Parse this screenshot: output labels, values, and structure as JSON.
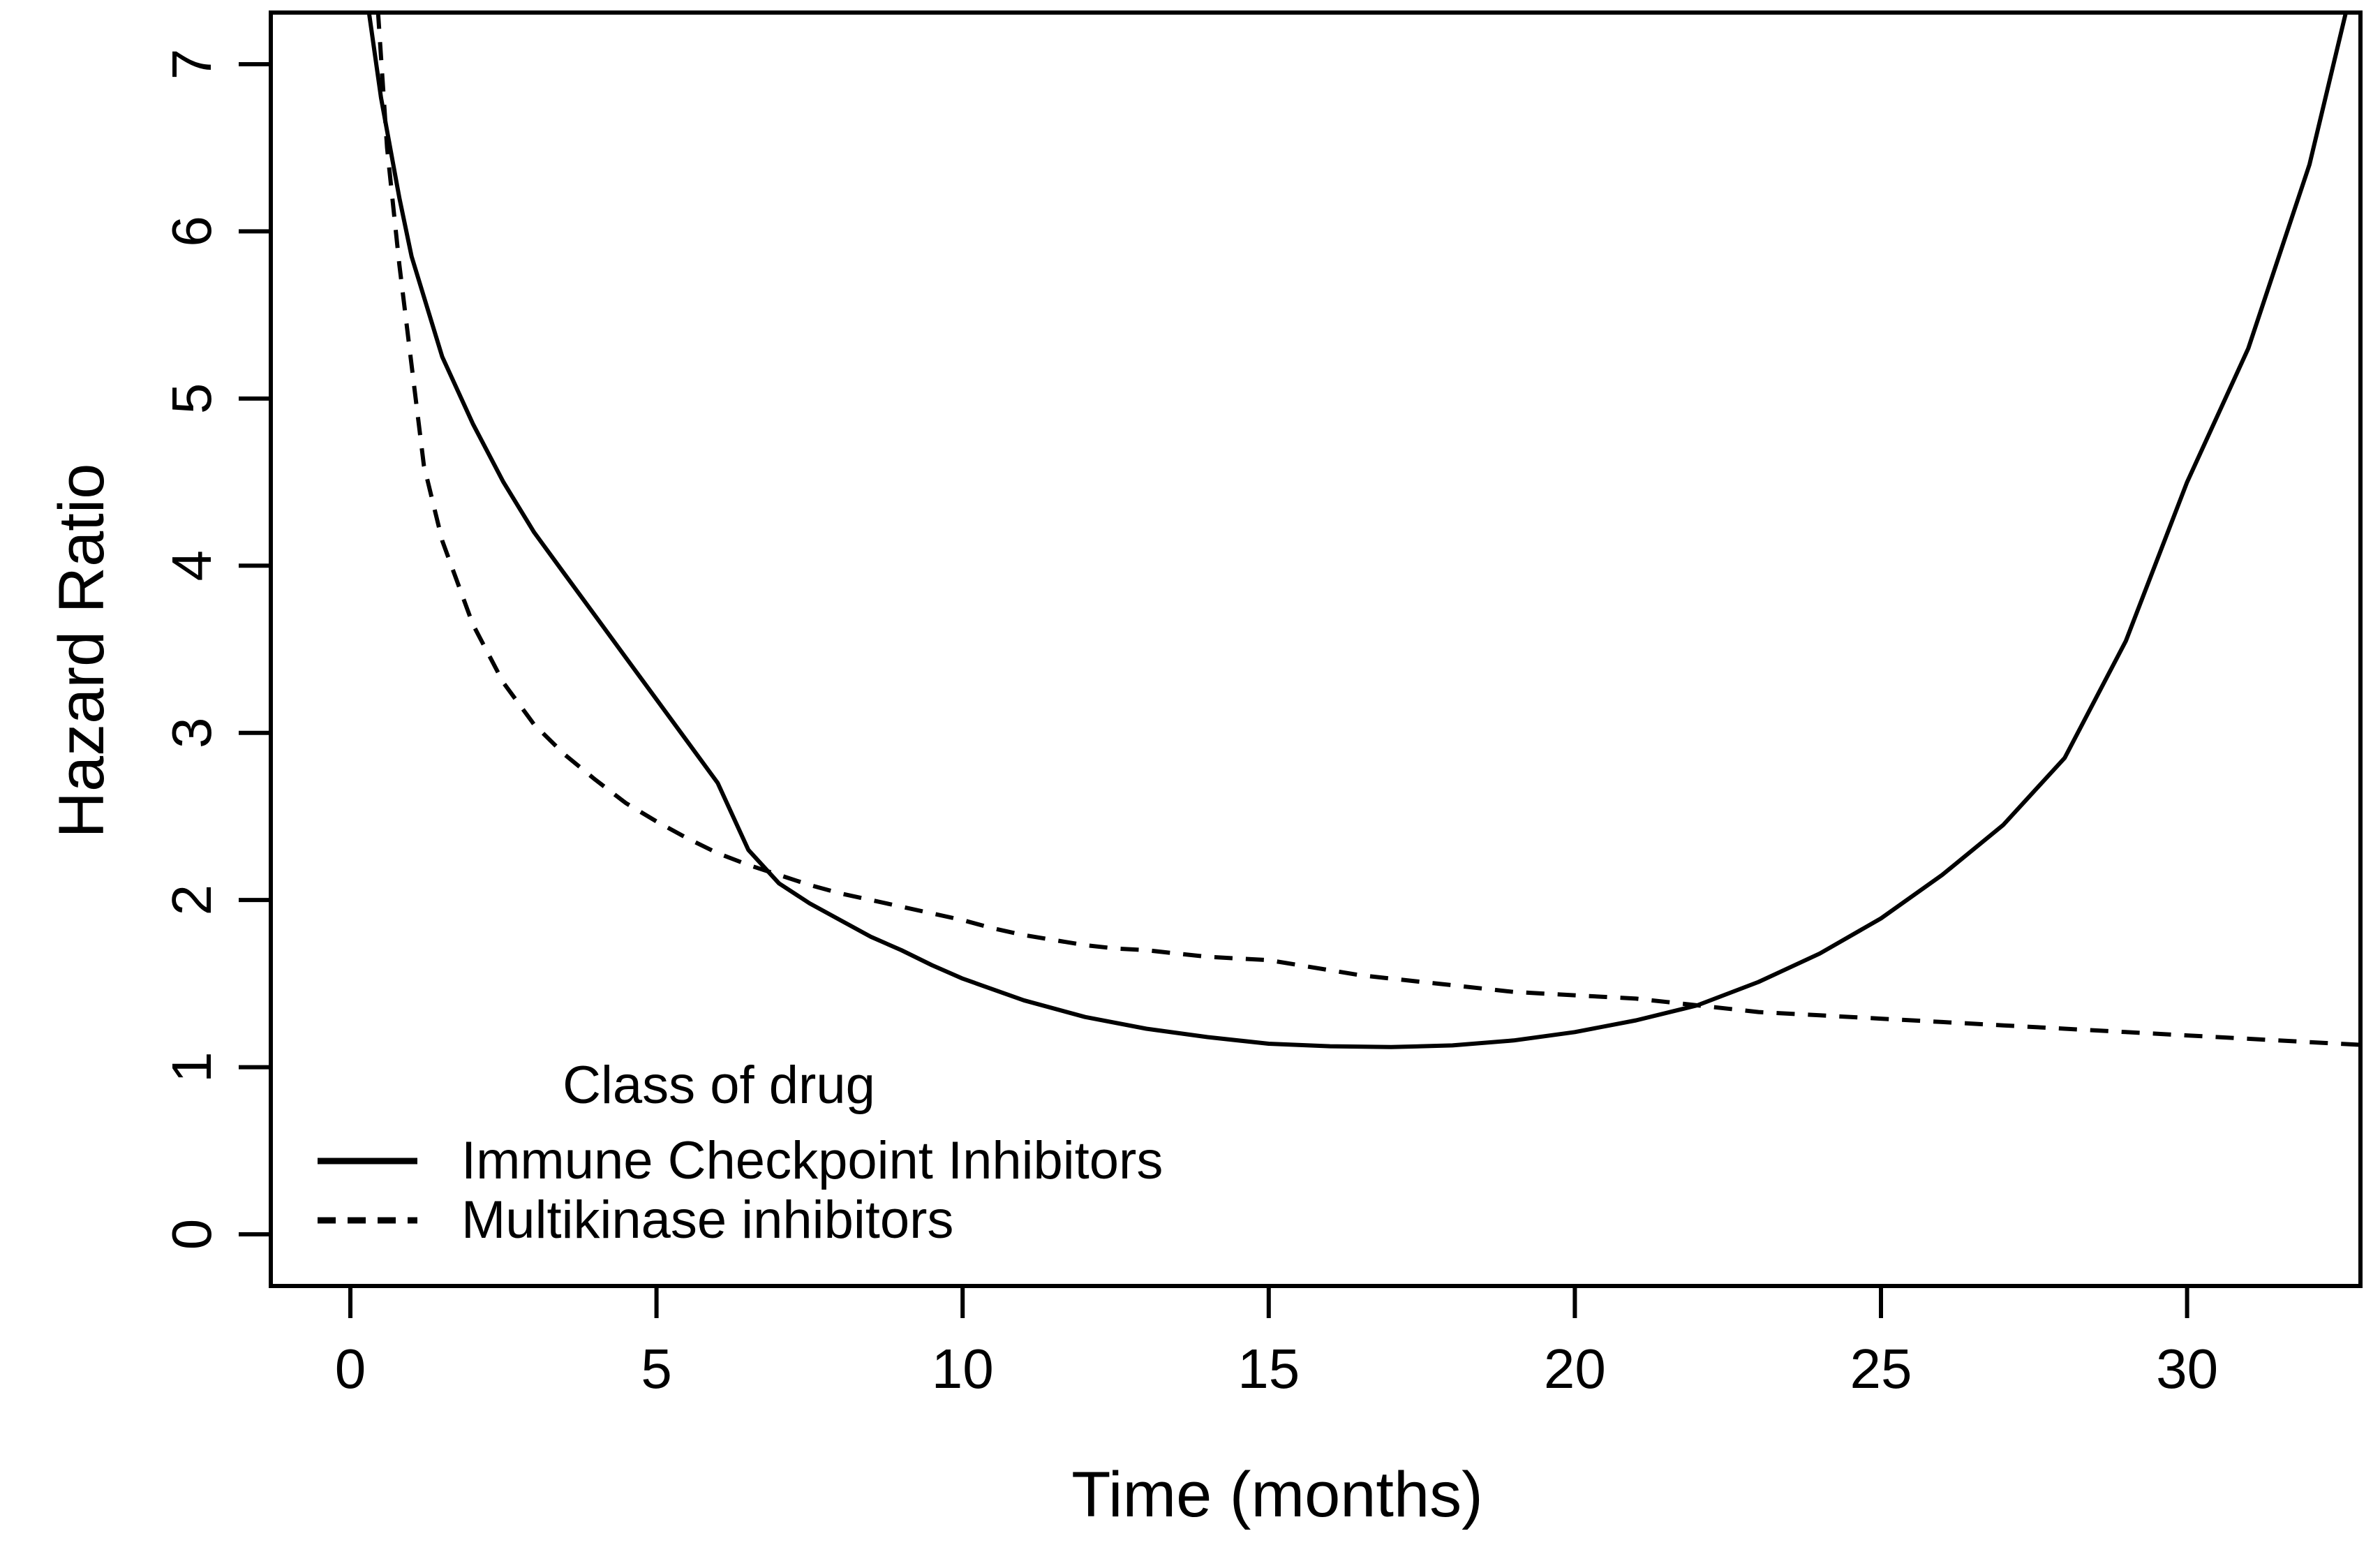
{
  "chart_data": {
    "type": "line",
    "title": "",
    "xlabel": "Time (months)",
    "ylabel": "Hazard Ratio",
    "x_ticks": [
      0,
      5,
      10,
      15,
      20,
      25,
      30
    ],
    "y_ticks": [
      0,
      1,
      2,
      3,
      4,
      5,
      6,
      7
    ],
    "xlim": [
      -1.3,
      32.8
    ],
    "ylim": [
      -0.31,
      7.33
    ],
    "grid": false,
    "line_color": "#000000",
    "background_color": "#ffffff",
    "legend": {
      "title": "Class of drug",
      "position": "inside-bottom-left",
      "entries": [
        {
          "label": "Immune Checkpoint Inhibitors",
          "line_style": "solid"
        },
        {
          "label": "Multikinase inhibitors",
          "line_style": "dashed"
        }
      ]
    },
    "series": [
      {
        "name": "Immune Checkpoint Inhibitors",
        "style": "solid",
        "points": [
          [
            0.3,
            7.32
          ],
          [
            0.5,
            6.8
          ],
          [
            0.8,
            6.2
          ],
          [
            1.0,
            5.85
          ],
          [
            1.5,
            5.25
          ],
          [
            2.0,
            4.85
          ],
          [
            2.5,
            4.5
          ],
          [
            3.0,
            4.2
          ],
          [
            3.5,
            3.95
          ],
          [
            4.0,
            3.7
          ],
          [
            4.5,
            3.45
          ],
          [
            5.0,
            3.2
          ],
          [
            5.5,
            2.95
          ],
          [
            6.0,
            2.7
          ],
          [
            6.5,
            2.3
          ],
          [
            7.0,
            2.1
          ],
          [
            7.5,
            1.98
          ],
          [
            8.0,
            1.88
          ],
          [
            8.5,
            1.78
          ],
          [
            9.0,
            1.7
          ],
          [
            9.5,
            1.61
          ],
          [
            10.0,
            1.53
          ],
          [
            11.0,
            1.4
          ],
          [
            12.0,
            1.3
          ],
          [
            13.0,
            1.23
          ],
          [
            14.0,
            1.18
          ],
          [
            15.0,
            1.14
          ],
          [
            16.0,
            1.125
          ],
          [
            17.0,
            1.12
          ],
          [
            18.0,
            1.13
          ],
          [
            19.0,
            1.16
          ],
          [
            20.0,
            1.21
          ],
          [
            21.0,
            1.28
          ],
          [
            22.0,
            1.37
          ],
          [
            23.0,
            1.51
          ],
          [
            24.0,
            1.68
          ],
          [
            25.0,
            1.89
          ],
          [
            26.0,
            2.15
          ],
          [
            27.0,
            2.45
          ],
          [
            28.0,
            2.85
          ],
          [
            29.0,
            3.55
          ],
          [
            30.0,
            4.5
          ],
          [
            31.0,
            5.3
          ],
          [
            32.0,
            6.4
          ],
          [
            32.6,
            7.32
          ]
        ]
      },
      {
        "name": "Multikinase inhibitors",
        "style": "dashed",
        "points": [
          [
            0.45,
            7.32
          ],
          [
            0.6,
            6.5
          ],
          [
            0.8,
            5.8
          ],
          [
            1.0,
            5.2
          ],
          [
            1.2,
            4.6
          ],
          [
            1.5,
            4.15
          ],
          [
            2.0,
            3.65
          ],
          [
            2.5,
            3.3
          ],
          [
            3.0,
            3.05
          ],
          [
            3.5,
            2.87
          ],
          [
            4.0,
            2.72
          ],
          [
            4.5,
            2.58
          ],
          [
            5.0,
            2.47
          ],
          [
            5.5,
            2.37
          ],
          [
            6.0,
            2.28
          ],
          [
            6.5,
            2.21
          ],
          [
            7.0,
            2.15
          ],
          [
            7.5,
            2.09
          ],
          [
            8.0,
            2.04
          ],
          [
            8.5,
            2.0
          ],
          [
            9.0,
            1.96
          ],
          [
            9.5,
            1.92
          ],
          [
            10.0,
            1.88
          ],
          [
            10.5,
            1.83
          ],
          [
            11.0,
            1.79
          ],
          [
            11.5,
            1.76
          ],
          [
            12.0,
            1.73
          ],
          [
            12.5,
            1.71
          ],
          [
            13.0,
            1.7
          ],
          [
            13.5,
            1.68
          ],
          [
            14.0,
            1.66
          ],
          [
            14.5,
            1.65
          ],
          [
            15.0,
            1.64
          ],
          [
            15.5,
            1.61
          ],
          [
            16.0,
            1.58
          ],
          [
            16.5,
            1.55
          ],
          [
            17.0,
            1.53
          ],
          [
            17.5,
            1.51
          ],
          [
            18.0,
            1.49
          ],
          [
            18.5,
            1.47
          ],
          [
            19.0,
            1.45
          ],
          [
            19.5,
            1.44
          ],
          [
            20.0,
            1.43
          ],
          [
            20.5,
            1.42
          ],
          [
            21.0,
            1.41
          ],
          [
            21.5,
            1.39
          ],
          [
            22.0,
            1.37
          ],
          [
            22.5,
            1.35
          ],
          [
            23.0,
            1.33
          ],
          [
            24.0,
            1.31
          ],
          [
            25.0,
            1.29
          ],
          [
            26.0,
            1.27
          ],
          [
            27.0,
            1.25
          ],
          [
            28.0,
            1.23
          ],
          [
            29.0,
            1.21
          ],
          [
            30.0,
            1.19
          ],
          [
            31.0,
            1.17
          ],
          [
            32.0,
            1.15
          ],
          [
            33.0,
            1.13
          ]
        ]
      }
    ]
  }
}
